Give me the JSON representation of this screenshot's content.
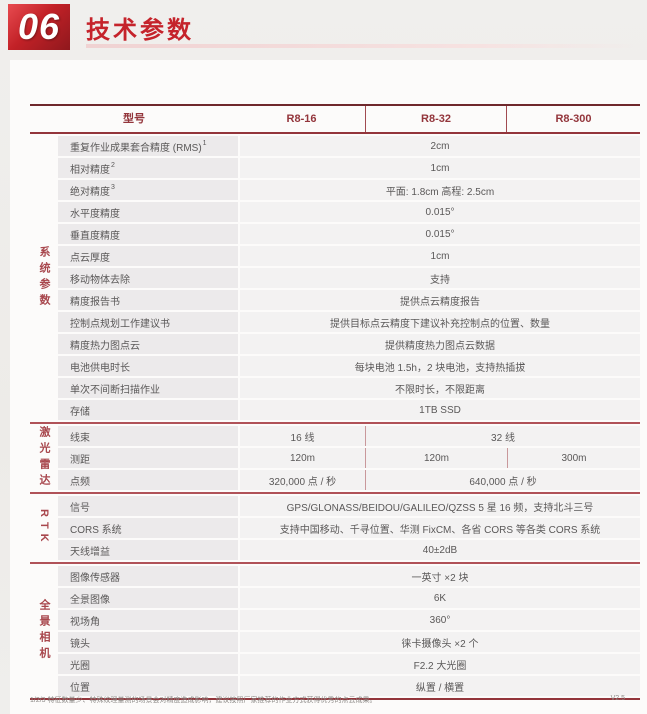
{
  "page": {
    "badge": "06",
    "title": "技术参数",
    "footnote": "1/2/3 特征数量少、特殊纹理量测的场景会对精度造成影响，建议按照厂家推荐的作业方式获得优秀的点云成果。",
    "version": "V2.5"
  },
  "colors": {
    "accent_red": "#c5232b",
    "header_text": "#93353b",
    "group_text": "#a8474d",
    "cell_bg": "#f3f2f2",
    "label_bg": "#eceaeb"
  },
  "table": {
    "header": [
      "型号",
      "R8-16",
      "R8-32",
      "R8-300"
    ],
    "groups": [
      {
        "name": "系统参数",
        "rows": [
          {
            "label": "重复作业成果套合精度 (RMS)",
            "sup": "1",
            "cells": [
              {
                "text": "2cm",
                "span": 3
              }
            ]
          },
          {
            "label": "相对精度",
            "sup": "2",
            "cells": [
              {
                "text": "1cm",
                "span": 3
              }
            ]
          },
          {
            "label": "绝对精度",
            "sup": "3",
            "cells": [
              {
                "text": "平面: 1.8cm 高程: 2.5cm",
                "span": 3
              }
            ]
          },
          {
            "label": "水平度精度",
            "sup": null,
            "cells": [
              {
                "text": "0.015°",
                "span": 3
              }
            ]
          },
          {
            "label": "垂直度精度",
            "sup": null,
            "cells": [
              {
                "text": "0.015°",
                "span": 3
              }
            ]
          },
          {
            "label": "点云厚度",
            "sup": null,
            "cells": [
              {
                "text": "1cm",
                "span": 3
              }
            ]
          },
          {
            "label": "移动物体去除",
            "sup": null,
            "cells": [
              {
                "text": "支持",
                "span": 3
              }
            ]
          },
          {
            "label": "精度报告书",
            "sup": null,
            "cells": [
              {
                "text": "提供点云精度报告",
                "span": 3
              }
            ]
          },
          {
            "label": "控制点规划工作建议书",
            "sup": null,
            "cells": [
              {
                "text": "提供目标点云精度下建议补充控制点的位置、数量",
                "span": 3
              }
            ]
          },
          {
            "label": "精度热力图点云",
            "sup": null,
            "cells": [
              {
                "text": "提供精度热力图点云数据",
                "span": 3
              }
            ]
          },
          {
            "label": "电池供电时长",
            "sup": null,
            "cells": [
              {
                "text": "每块电池 1.5h，2 块电池，支持热插拔",
                "span": 3
              }
            ]
          },
          {
            "label": "单次不间断扫描作业",
            "sup": null,
            "cells": [
              {
                "text": "不限时长，不限距离",
                "span": 3
              }
            ]
          },
          {
            "label": "存储",
            "sup": null,
            "cells": [
              {
                "text": "1TB  SSD",
                "span": 3
              }
            ]
          }
        ]
      },
      {
        "name": "激光雷达",
        "rows": [
          {
            "label": "线束",
            "sup": null,
            "cells": [
              {
                "text": "16 线",
                "span": 1
              },
              {
                "text": "32 线",
                "span": 2
              }
            ]
          },
          {
            "label": "测距",
            "sup": null,
            "cells": [
              {
                "text": "120m",
                "span": 1
              },
              {
                "text": "120m",
                "span": 1
              },
              {
                "text": "300m",
                "span": 1
              }
            ]
          },
          {
            "label": "点频",
            "sup": null,
            "cells": [
              {
                "text": "320,000 点 / 秒",
                "span": 1
              },
              {
                "text": "640,000 点 / 秒",
                "span": 2
              }
            ]
          }
        ]
      },
      {
        "name": "RTK",
        "rows": [
          {
            "label": "信号",
            "sup": null,
            "cells": [
              {
                "text": "GPS/GLONASS/BEIDOU/GALILEO/QZSS  5 星 16 频，支持北斗三号",
                "span": 3
              }
            ]
          },
          {
            "label": "CORS 系统",
            "sup": null,
            "cells": [
              {
                "text": "支持中国移动、千寻位置、华测 FixCM、各省 CORS 等各类 CORS 系统",
                "span": 3
              }
            ]
          },
          {
            "label": "天线增益",
            "sup": null,
            "cells": [
              {
                "text": "40±2dB",
                "span": 3
              }
            ]
          }
        ]
      },
      {
        "name": "全景相机",
        "rows": [
          {
            "label": "图像传感器",
            "sup": null,
            "cells": [
              {
                "text": "一英寸 ×2 块",
                "span": 3
              }
            ]
          },
          {
            "label": "全景图像",
            "sup": null,
            "cells": [
              {
                "text": "6K",
                "span": 3
              }
            ]
          },
          {
            "label": "视场角",
            "sup": null,
            "cells": [
              {
                "text": "360°",
                "span": 3
              }
            ]
          },
          {
            "label": "镜头",
            "sup": null,
            "cells": [
              {
                "text": "徕卡摄像头 ×2 个",
                "span": 3
              }
            ]
          },
          {
            "label": "光圈",
            "sup": null,
            "cells": [
              {
                "text": "F2.2 大光圈",
                "span": 3
              }
            ]
          },
          {
            "label": "位置",
            "sup": null,
            "cells": [
              {
                "text": "纵置 / 横置",
                "span": 3
              }
            ]
          }
        ]
      }
    ]
  }
}
